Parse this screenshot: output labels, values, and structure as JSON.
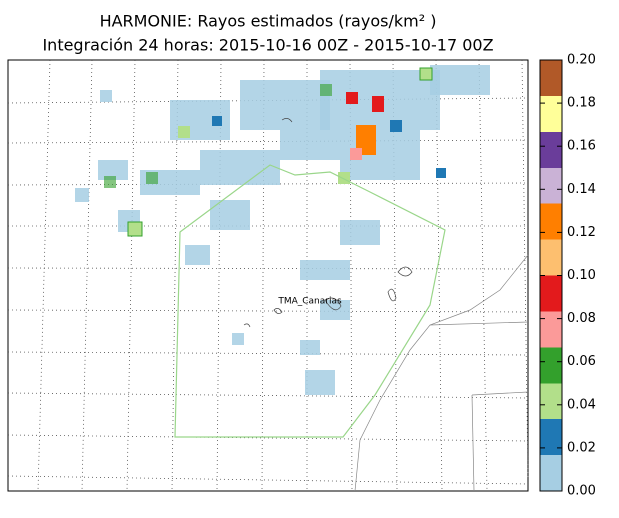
{
  "title": "HARMONIE: Rayos estimados (rayos/km² )",
  "subtitle": "Integración 24 horas: 2015-10-16 00Z - 2015-10-17 00Z",
  "map": {
    "label": "TMA_Canarias"
  },
  "colorbar": {
    "lim": [
      0,
      0.2
    ],
    "ticks": [
      {
        "value": 0,
        "label": "0.00"
      },
      {
        "value": 0.02,
        "label": "0.02"
      },
      {
        "value": 0.04,
        "label": "0.04"
      },
      {
        "value": 0.06,
        "label": "0.06"
      },
      {
        "value": 0.08,
        "label": "0.08"
      },
      {
        "value": 0.1,
        "label": "0.10"
      },
      {
        "value": 0.12,
        "label": "0.12"
      },
      {
        "value": 0.14,
        "label": "0.14"
      },
      {
        "value": 0.16,
        "label": "0.16"
      },
      {
        "value": 0.18,
        "label": "0.18"
      },
      {
        "value": 0.2,
        "label": "0.20"
      }
    ],
    "colors": [
      "#a6cee3",
      "#1f78b4",
      "#b2df8a",
      "#33a02c",
      "#fb9a99",
      "#e31a1c",
      "#fdbf6f",
      "#ff7f00",
      "#cab2d6",
      "#6a3d9a",
      "#ffff99",
      "#b15928"
    ]
  }
}
